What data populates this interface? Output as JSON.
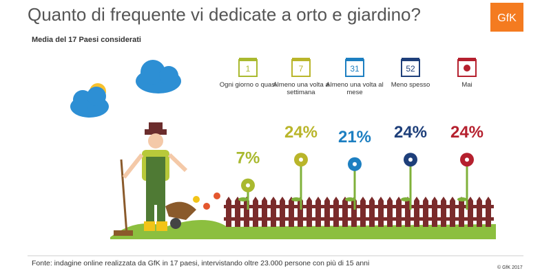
{
  "chart_data": {
    "type": "pictograph",
    "title": "Quanto di frequente vi dedicate a orto e giardino?",
    "subtitle": "Media del 17 Paesi considerati",
    "logo": "GfK",
    "categories": [
      "Ogni giorno o quasi",
      "Almeno una volta a settimana",
      "Almeno una volta al mese",
      "Meno spesso",
      "Mai"
    ],
    "icon_labels": [
      "1",
      "7",
      "31",
      "52",
      null
    ],
    "values": [
      7,
      24,
      21,
      24,
      24
    ],
    "value_labels": [
      "7%",
      "24%",
      "21%",
      "24%",
      "24%"
    ],
    "colors": [
      "#a9b92f",
      "#b9b52a",
      "#1d7fc1",
      "#1e3f7a",
      "#b5202e"
    ],
    "source": "Fonte: indagine online realizzata da GfK in 17 paesi, intervistando oltre 23.000 persone con più di 15 anni",
    "copyright": "© GfK 2017"
  }
}
